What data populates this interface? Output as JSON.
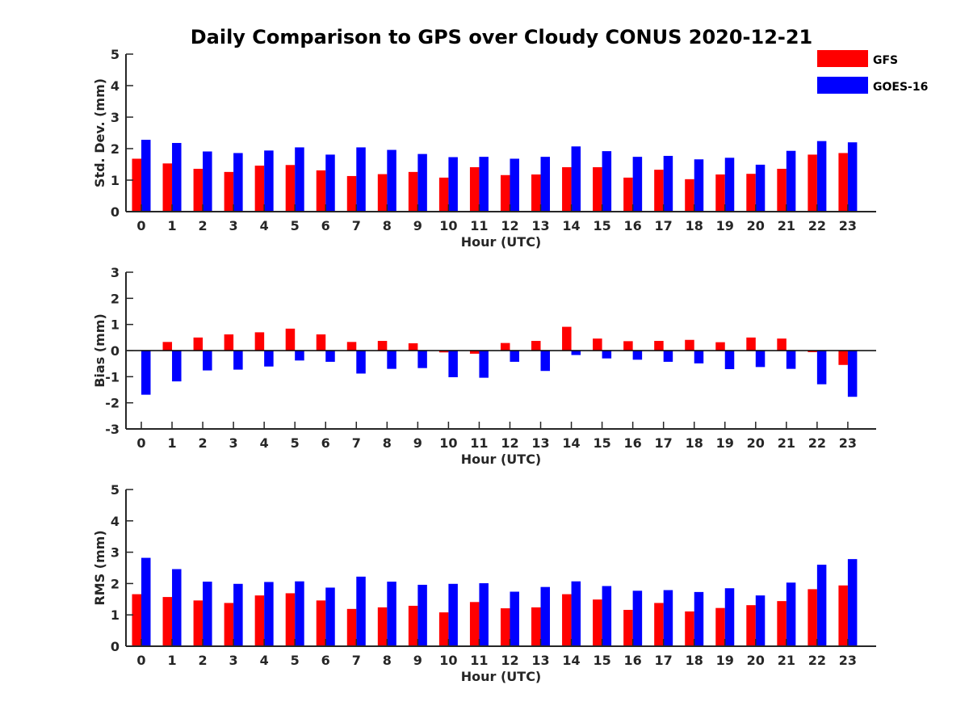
{
  "title": "Daily Comparison to GPS over Cloudy CONUS 2020-12-21",
  "legend": [
    {
      "name": "GFS",
      "color": "#ff0000"
    },
    {
      "name": "GOES-16",
      "color": "#0000ff"
    }
  ],
  "chart_data": [
    {
      "type": "bar",
      "ylabel": "Std. Dev. (mm)",
      "xlabel": "Hour (UTC)",
      "ylim": [
        0,
        5
      ],
      "yticks": [
        0,
        1,
        2,
        3,
        4,
        5
      ],
      "categories": [
        "0",
        "1",
        "2",
        "3",
        "4",
        "5",
        "6",
        "7",
        "8",
        "9",
        "10",
        "11",
        "12",
        "13",
        "14",
        "15",
        "16",
        "17",
        "18",
        "19",
        "20",
        "21",
        "22",
        "23"
      ],
      "series": [
        {
          "name": "GFS",
          "color": "#ff0000",
          "values": [
            1.68,
            1.53,
            1.36,
            1.26,
            1.46,
            1.48,
            1.31,
            1.13,
            1.19,
            1.26,
            1.08,
            1.41,
            1.16,
            1.18,
            1.41,
            1.41,
            1.08,
            1.33,
            1.03,
            1.18,
            1.2,
            1.36,
            1.81,
            1.86
          ]
        },
        {
          "name": "GOES-16",
          "color": "#0000ff",
          "values": [
            2.28,
            2.18,
            1.91,
            1.86,
            1.94,
            2.04,
            1.81,
            2.04,
            1.96,
            1.83,
            1.73,
            1.74,
            1.68,
            1.74,
            2.07,
            1.92,
            1.74,
            1.77,
            1.66,
            1.71,
            1.49,
            1.93,
            2.24,
            2.2
          ]
        }
      ]
    },
    {
      "type": "bar",
      "ylabel": "Bias (mm)",
      "xlabel": "Hour (UTC)",
      "ylim": [
        -3,
        3
      ],
      "yticks": [
        -3,
        -2,
        -1,
        0,
        1,
        2,
        3
      ],
      "zero_line": true,
      "categories": [
        "0",
        "1",
        "2",
        "3",
        "4",
        "5",
        "6",
        "7",
        "8",
        "9",
        "10",
        "11",
        "12",
        "13",
        "14",
        "15",
        "16",
        "17",
        "18",
        "19",
        "20",
        "21",
        "22",
        "23"
      ],
      "series": [
        {
          "name": "GFS",
          "color": "#ff0000",
          "values": [
            0.0,
            0.33,
            0.5,
            0.62,
            0.7,
            0.84,
            0.62,
            0.33,
            0.37,
            0.28,
            -0.07,
            -0.12,
            0.29,
            0.37,
            0.91,
            0.46,
            0.36,
            0.37,
            0.41,
            0.32,
            0.5,
            0.46,
            -0.06,
            -0.55
          ]
        },
        {
          "name": "GOES-16",
          "color": "#0000ff",
          "values": [
            -1.69,
            -1.18,
            -0.76,
            -0.73,
            -0.61,
            -0.38,
            -0.43,
            -0.88,
            -0.7,
            -0.67,
            -1.02,
            -1.04,
            -0.43,
            -0.78,
            -0.17,
            -0.3,
            -0.35,
            -0.43,
            -0.49,
            -0.71,
            -0.63,
            -0.7,
            -1.29,
            -1.77
          ]
        }
      ]
    },
    {
      "type": "bar",
      "ylabel": "RMS (mm)",
      "xlabel": "Hour (UTC)",
      "ylim": [
        0,
        5
      ],
      "yticks": [
        0,
        1,
        2,
        3,
        4,
        5
      ],
      "categories": [
        "0",
        "1",
        "2",
        "3",
        "4",
        "5",
        "6",
        "7",
        "8",
        "9",
        "10",
        "11",
        "12",
        "13",
        "14",
        "15",
        "16",
        "17",
        "18",
        "19",
        "20",
        "21",
        "22",
        "23"
      ],
      "series": [
        {
          "name": "GFS",
          "color": "#ff0000",
          "values": [
            1.66,
            1.57,
            1.46,
            1.38,
            1.62,
            1.69,
            1.46,
            1.19,
            1.24,
            1.29,
            1.08,
            1.41,
            1.21,
            1.24,
            1.66,
            1.49,
            1.16,
            1.38,
            1.11,
            1.22,
            1.31,
            1.44,
            1.82,
            1.94
          ]
        },
        {
          "name": "GOES-16",
          "color": "#0000ff",
          "values": [
            2.82,
            2.46,
            2.06,
            1.99,
            2.05,
            2.07,
            1.87,
            2.22,
            2.06,
            1.96,
            1.99,
            2.01,
            1.74,
            1.89,
            2.07,
            1.92,
            1.77,
            1.79,
            1.73,
            1.85,
            1.62,
            2.03,
            2.6,
            2.78
          ]
        }
      ]
    }
  ]
}
